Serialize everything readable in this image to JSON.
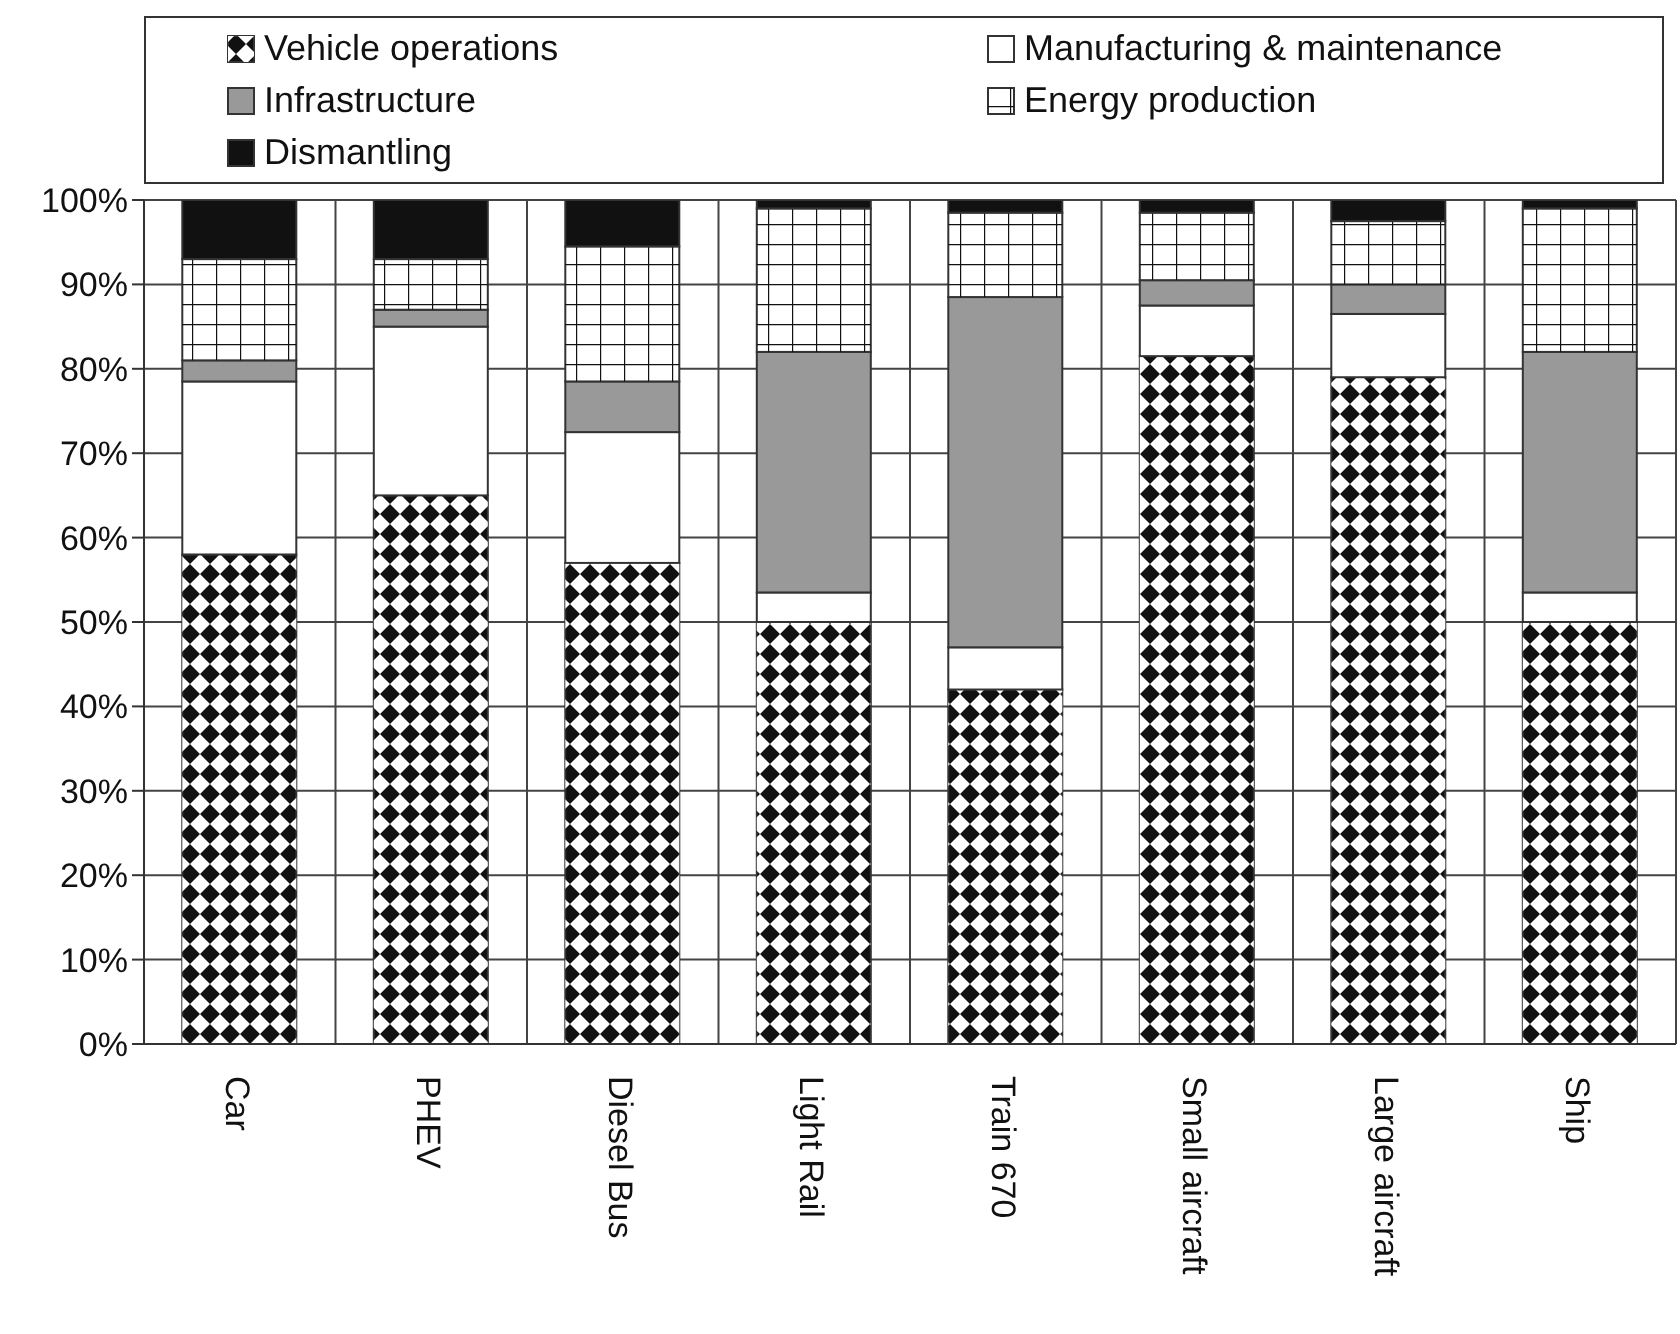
{
  "chart_data": {
    "type": "bar",
    "stacked": true,
    "categories": [
      "Car",
      "PHEV",
      "Diesel Bus",
      "Light Rail",
      "Train 670",
      "Small aircraft",
      "Large aircraft",
      "Ship"
    ],
    "series": [
      {
        "name": "Vehicle operations",
        "color": "#111111",
        "values": [
          58,
          65,
          57,
          50,
          42,
          81.5,
          79,
          50
        ]
      },
      {
        "name": "Manufacturing & maintenance",
        "color": "#ffffff",
        "values": [
          20.5,
          20,
          15.5,
          3.5,
          5,
          6,
          7.5,
          3.5
        ]
      },
      {
        "name": "Infrastructure",
        "color": "#999999",
        "values": [
          2.5,
          2,
          6,
          28.5,
          41.5,
          3,
          3.5,
          28.5
        ]
      },
      {
        "name": "Energy production",
        "color": "#ffffff",
        "values": [
          12,
          6,
          16,
          17,
          10,
          8,
          7.5,
          17
        ]
      },
      {
        "name": "Dismantling",
        "color": "#111111",
        "values": [
          7,
          7,
          5.5,
          1,
          1.5,
          1.5,
          2.5,
          1
        ]
      }
    ],
    "ylim": [
      0,
      100
    ],
    "yticks": [
      {
        "value": 0,
        "label": "0%"
      },
      {
        "value": 10,
        "label": "10%"
      },
      {
        "value": 20,
        "label": "20%"
      },
      {
        "value": 30,
        "label": "30%"
      },
      {
        "value": 40,
        "label": "40%"
      },
      {
        "value": 50,
        "label": "50%"
      },
      {
        "value": 60,
        "label": "60%"
      },
      {
        "value": 70,
        "label": "70%"
      },
      {
        "value": 80,
        "label": "80%"
      },
      {
        "value": 90,
        "label": "90%"
      },
      {
        "value": 100,
        "label": "100%"
      }
    ],
    "grid": true,
    "legend": "top"
  }
}
